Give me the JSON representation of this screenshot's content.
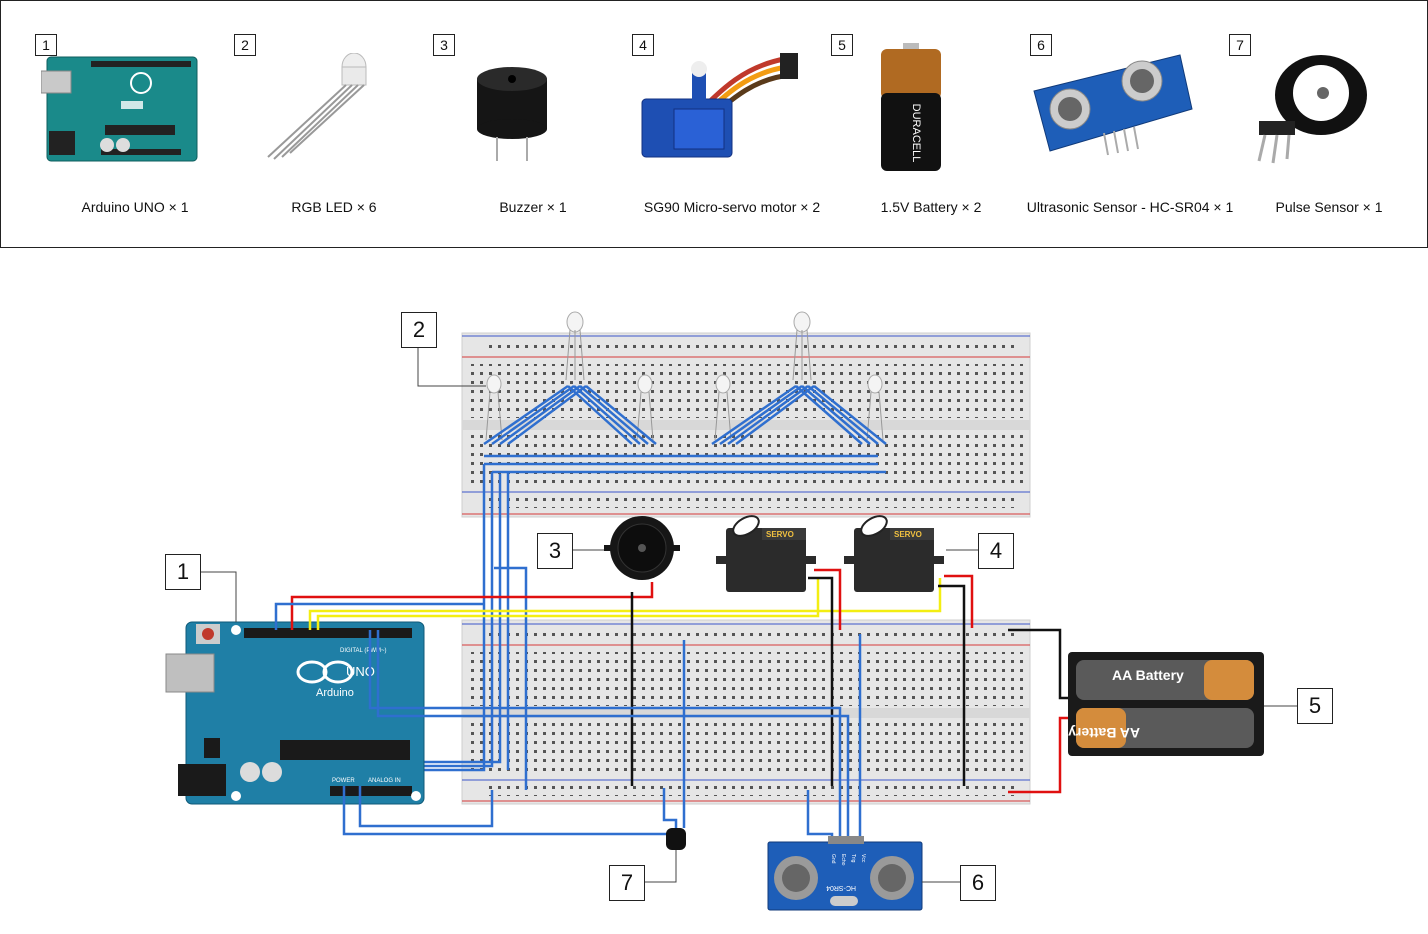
{
  "parts": [
    {
      "num": "1",
      "label": "Arduino UNO × 1",
      "icon": "arduino-uno-icon"
    },
    {
      "num": "2",
      "label": "RGB LED × 6",
      "icon": "rgb-led-icon"
    },
    {
      "num": "3",
      "label": "Buzzer × 1",
      "icon": "buzzer-icon"
    },
    {
      "num": "4",
      "label": "SG90 Micro-servo motor × 2",
      "icon": "servo-icon"
    },
    {
      "num": "5",
      "label": "1.5V Battery × 2",
      "icon": "battery-icon"
    },
    {
      "num": "6",
      "label": "Ultrasonic Sensor - HC-SR04 × 1",
      "icon": "ultrasonic-sensor-icon"
    },
    {
      "num": "7",
      "label": "Pulse Sensor × 1",
      "icon": "pulse-sensor-icon"
    }
  ],
  "callouts": {
    "arduino": "1",
    "leds": "2",
    "buzzer": "3",
    "servos": "4",
    "battery": "5",
    "ultrasonic": "6",
    "pulse": "7"
  },
  "board_text": {
    "arduino_brand": "Arduino",
    "arduino_model": "UNO",
    "arduino_digital": "DIGITAL (PWM~)",
    "arduino_power": "POWER",
    "arduino_analog": "ANALOG IN",
    "servo_label": "SERVO",
    "battery_label": "AA Battery",
    "sensor_label": "HC-SR04",
    "sensor_pins": [
      "Vcc",
      "Trig",
      "Echo",
      "Gnd"
    ],
    "battery_brand": "DURACELL"
  },
  "colors": {
    "wire_blue": "#2f6fcf",
    "wire_red": "#e01010",
    "wire_yellow": "#f3ee12",
    "wire_black": "#111111",
    "arduino_teal": "#1f7fa6",
    "rail_blue": "#3c55c9",
    "rail_red": "#d63b3b",
    "pin_green": "#3cbf3c"
  }
}
